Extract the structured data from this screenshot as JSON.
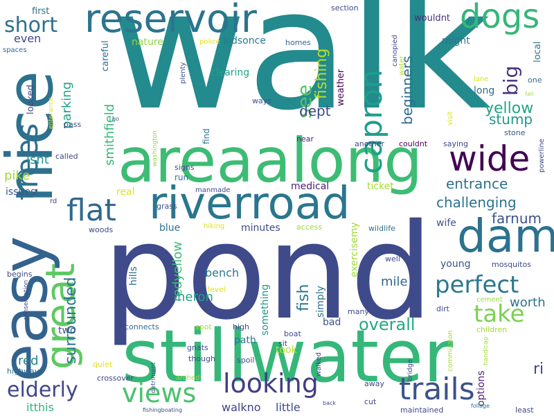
{
  "words": [
    {
      "text": "walk",
      "size": 240,
      "color": "#238a8d",
      "rot": 0
    },
    {
      "text": "pond",
      "size": 190,
      "color": "#3e4a89",
      "rot": 0
    },
    {
      "text": "stillwater",
      "size": 104,
      "color": "#35b779",
      "rot": 0
    },
    {
      "text": "areaalong",
      "size": 88,
      "color": "#3dbc74",
      "rot": 0
    },
    {
      "text": "nice",
      "size": 92,
      "color": "#2c718e",
      "rot": -90
    },
    {
      "text": "easy",
      "size": 90,
      "color": "#33638d",
      "rot": -90
    },
    {
      "text": "riverroad",
      "size": 64,
      "color": "#2a768e",
      "rot": 0
    },
    {
      "text": "dam",
      "size": 66,
      "color": "#2c728e",
      "rot": 0
    },
    {
      "text": "reservoir",
      "size": 56,
      "color": "#2b748e",
      "rot": 0
    },
    {
      "text": "great",
      "size": 58,
      "color": "#5ec962",
      "rot": -90
    },
    {
      "text": "wide",
      "size": 50,
      "color": "#440154",
      "rot": 0
    },
    {
      "text": "dogs",
      "size": 48,
      "color": "#35b779",
      "rot": 0
    },
    {
      "text": "trees",
      "size": 44,
      "color": "#2e6f8e",
      "rot": -90
    },
    {
      "text": "capron",
      "size": 44,
      "color": "#1f9e89",
      "rot": -90
    },
    {
      "text": "flat",
      "size": 44,
      "color": "#31688e",
      "rot": 0
    },
    {
      "text": "trails",
      "size": 44,
      "color": "#3b528b",
      "rot": 0
    },
    {
      "text": "looking",
      "size": 38,
      "color": "#433e85",
      "rot": 0
    },
    {
      "text": "perfect",
      "size": 34,
      "color": "#29788e",
      "rot": 0
    },
    {
      "text": "views",
      "size": 38,
      "color": "#4ac16d",
      "rot": 0
    },
    {
      "text": "take",
      "size": 34,
      "color": "#7ad151",
      "rot": 0
    },
    {
      "text": "elderly",
      "size": 30,
      "color": "#3f4788",
      "rot": 0
    },
    {
      "text": "short",
      "size": 30,
      "color": "#2d708e",
      "rot": 0
    },
    {
      "text": "big",
      "size": 28,
      "color": "#46337e",
      "rot": -90
    },
    {
      "text": "see",
      "size": 28,
      "color": "#52c569",
      "rot": -90
    },
    {
      "text": "surrounded",
      "size": 22,
      "color": "#2b748e",
      "rot": -90
    },
    {
      "text": "overall",
      "size": 24,
      "color": "#22a884",
      "rot": 0
    },
    {
      "text": "yellow",
      "size": 22,
      "color": "#21a685",
      "rot": 0
    },
    {
      "text": "challenging",
      "size": 20,
      "color": "#2c728e",
      "rot": 0
    },
    {
      "text": "entrance",
      "size": 20,
      "color": "#2d718e",
      "rot": 0
    },
    {
      "text": "stump",
      "size": 20,
      "color": "#1f988b",
      "rot": 0
    },
    {
      "text": "fishing",
      "size": 22,
      "color": "#b5de2b",
      "rot": -90
    },
    {
      "text": "fish",
      "size": 22,
      "color": "#2a788e",
      "rot": -90
    },
    {
      "text": "beginners",
      "size": 20,
      "color": "#2e6e8e",
      "rot": -90
    },
    {
      "text": "farnum",
      "size": 20,
      "color": "#3b528b",
      "rot": 0
    },
    {
      "text": "dept",
      "size": 20,
      "color": "#3e4989",
      "rot": 0
    },
    {
      "text": "parking",
      "size": 18,
      "color": "#20a386",
      "rot": -90
    },
    {
      "text": "smithfield",
      "size": 18,
      "color": "#35b779",
      "rot": -90
    },
    {
      "text": "redyellow",
      "size": 18,
      "color": "#3dbc74",
      "rot": -90
    },
    {
      "text": "red",
      "size": 18,
      "color": "#26828e",
      "rot": 0
    },
    {
      "text": "worth",
      "size": 18,
      "color": "#2c728e",
      "rot": 0
    },
    {
      "text": "mile",
      "size": 18,
      "color": "#31688e",
      "rot": 0
    },
    {
      "text": "pike",
      "size": 18,
      "color": "#a0da39",
      "rot": 0
    },
    {
      "text": "isnt",
      "size": 18,
      "color": "#218f8d",
      "rot": 0
    },
    {
      "text": "heron",
      "size": 18,
      "color": "#20a486",
      "rot": 0
    },
    {
      "text": "bench",
      "size": 16,
      "color": "#2a788e",
      "rot": 0
    },
    {
      "text": "itthis",
      "size": 16,
      "color": "#2fb47c",
      "rot": 0
    },
    {
      "text": "walkno",
      "size": 16,
      "color": "#414487",
      "rot": 0
    },
    {
      "text": "little",
      "size": 16,
      "color": "#3e4989",
      "rot": 0
    },
    {
      "text": "ri",
      "size": 22,
      "color": "#3e4989",
      "rot": 0
    },
    {
      "text": "even",
      "size": 16,
      "color": "#3e4989",
      "rot": 0
    },
    {
      "text": "exercisemy",
      "size": 14,
      "color": "#a0da39",
      "rot": -90
    },
    {
      "text": "medical",
      "size": 14,
      "color": "#482173",
      "rot": 0
    },
    {
      "text": "wife",
      "size": 14,
      "color": "#3b528b",
      "rot": 0
    },
    {
      "text": "young",
      "size": 14,
      "color": "#3b528b",
      "rot": 0
    },
    {
      "text": "long",
      "size": 14,
      "color": "#31688e",
      "rot": 0
    },
    {
      "text": "blue",
      "size": 14,
      "color": "#2c728e",
      "rot": 0
    },
    {
      "text": "minutes",
      "size": 14,
      "color": "#3e4989",
      "rot": 0
    },
    {
      "text": "clearing",
      "size": 14,
      "color": "#20a486",
      "rot": 0
    },
    {
      "text": "ticket",
      "size": 14,
      "color": "#a8db34",
      "rot": 0
    },
    {
      "text": "real",
      "size": 14,
      "color": "#dde318",
      "rot": 0
    },
    {
      "text": "might",
      "size": 14,
      "color": "#2c728e",
      "rot": 0
    },
    {
      "text": "nature",
      "size": 14,
      "color": "#8fd744",
      "rot": 0
    },
    {
      "text": "kidsonce",
      "size": 14,
      "color": "#2a788e",
      "rot": 0
    },
    {
      "text": "hills",
      "size": 14,
      "color": "#2e6e8e",
      "rot": -90
    },
    {
      "text": "something",
      "size": 14,
      "color": "#1f9a8a",
      "rot": -90
    },
    {
      "text": "simply",
      "size": 14,
      "color": "#2e6e8e",
      "rot": -90
    },
    {
      "text": "options",
      "size": 14,
      "color": "#482475",
      "rot": -90
    },
    {
      "text": "bad",
      "size": 14,
      "color": "#3b528b",
      "rot": 0
    },
    {
      "text": "took",
      "size": 14,
      "color": "#b5de2b",
      "rot": 0
    },
    {
      "text": "path",
      "size": 14,
      "color": "#2c728e",
      "rot": 0
    },
    {
      "text": "two",
      "size": 14,
      "color": "#3b528b",
      "rot": 0
    },
    {
      "text": "issues",
      "size": 14,
      "color": "#3b528b",
      "rot": 0
    },
    {
      "text": "run",
      "size": 12,
      "color": "#2e6e8e",
      "rot": 0
    },
    {
      "text": "looked",
      "size": 13,
      "color": "#3e4989",
      "rot": -90
    },
    {
      "text": "careful",
      "size": 13,
      "color": "#2e6e8e",
      "rot": -90
    },
    {
      "text": "weather",
      "size": 13,
      "color": "#440154",
      "rot": -90
    },
    {
      "text": "local",
      "size": 13,
      "color": "#2c728e",
      "rot": -90
    },
    {
      "text": "wouldnt",
      "size": 13,
      "color": "#472f7d",
      "rot": 0
    },
    {
      "text": "first",
      "size": 13,
      "color": "#2e6e8e",
      "rot": 0
    },
    {
      "text": "section",
      "size": 11,
      "color": "#3e4989",
      "rot": 0
    },
    {
      "text": "homes",
      "size": 11,
      "color": "#31688e",
      "rot": 0
    },
    {
      "text": "police",
      "size": 10,
      "color": "#dde318",
      "rot": 0
    },
    {
      "text": "spaces",
      "size": 10,
      "color": "#31688e",
      "rot": 0
    },
    {
      "text": "plenty",
      "size": 10,
      "color": "#3b528b",
      "rot": -90
    },
    {
      "text": "canopied",
      "size": 10,
      "color": "#3e4989",
      "rot": -90
    },
    {
      "text": "water",
      "size": 10,
      "color": "#b5de2b",
      "rot": -90
    },
    {
      "text": "ways",
      "size": 11,
      "color": "#3b528b",
      "rot": 0
    },
    {
      "text": "lane",
      "size": 10,
      "color": "#dde318",
      "rot": 0
    },
    {
      "text": "one",
      "size": 11,
      "color": "#31688e",
      "rot": 0
    },
    {
      "text": "fall",
      "size": 8,
      "color": "#a0da39",
      "rot": 0
    },
    {
      "text": "find",
      "size": 12,
      "color": "#2c728e",
      "rot": -90
    },
    {
      "text": "pass",
      "size": 11,
      "color": "#3e4989",
      "rot": 0
    },
    {
      "text": "go",
      "size": 8,
      "color": "#3b528b",
      "rot": 0
    },
    {
      "text": "enterance",
      "size": 9,
      "color": "#dde318",
      "rot": -90
    },
    {
      "text": "visit",
      "size": 10,
      "color": "#dde318",
      "rot": -90
    },
    {
      "text": "stone",
      "size": 11,
      "color": "#3b528b",
      "rot": 0
    },
    {
      "text": "powerline",
      "size": 10,
      "color": "#3e4989",
      "rot": -90
    },
    {
      "text": "saying",
      "size": 11,
      "color": "#3e4989",
      "rot": 0
    },
    {
      "text": "near",
      "size": 11,
      "color": "#482173",
      "rot": 0
    },
    {
      "text": "another",
      "size": 11,
      "color": "#3e4989",
      "rot": 0
    },
    {
      "text": "couldnt",
      "size": 11,
      "color": "#440154",
      "rot": 0
    },
    {
      "text": "called",
      "size": 11,
      "color": "#3e4989",
      "rot": 0
    },
    {
      "text": "washington",
      "size": 9,
      "color": "#8fd744",
      "rot": -90
    },
    {
      "text": "signs",
      "size": 11,
      "color": "#3e4989",
      "rot": 0
    },
    {
      "text": "rd",
      "size": 10,
      "color": "#3e4989",
      "rot": 0
    },
    {
      "text": "grass",
      "size": 11,
      "color": "#3b528b",
      "rot": 0
    },
    {
      "text": "manmade",
      "size": 10,
      "color": "#3e4989",
      "rot": 0
    },
    {
      "text": "woods",
      "size": 11,
      "color": "#3e4989",
      "rot": 0
    },
    {
      "text": "hiking",
      "size": 10,
      "color": "#dde318",
      "rot": 0
    },
    {
      "text": "access",
      "size": 11,
      "color": "#a0da39",
      "rot": 0
    },
    {
      "text": "wildlife",
      "size": 11,
      "color": "#2c728e",
      "rot": 0
    },
    {
      "text": "begins",
      "size": 11,
      "color": "#3e4989",
      "rot": 0
    },
    {
      "text": "conservation",
      "size": 9,
      "color": "#3e4989",
      "rot": -90
    },
    {
      "text": "level",
      "size": 11,
      "color": "#dde318",
      "rot": 0
    },
    {
      "text": "well",
      "size": 11,
      "color": "#3e4989",
      "rot": 0
    },
    {
      "text": "mosquitos",
      "size": 11,
      "color": "#3e4989",
      "rot": 0
    },
    {
      "text": "cement",
      "size": 10,
      "color": "#a0da39",
      "rot": 0
    },
    {
      "text": "many",
      "size": 11,
      "color": "#3e4989",
      "rot": 0
    },
    {
      "text": "dirt",
      "size": 11,
      "color": "#3e4989",
      "rot": 0
    },
    {
      "text": "children",
      "size": 11,
      "color": "#a0da39",
      "rot": 0
    },
    {
      "text": "connects",
      "size": 11,
      "color": "#31688e",
      "rot": 0
    },
    {
      "text": "spot",
      "size": 11,
      "color": "#a0da39",
      "rot": 0
    },
    {
      "text": "high",
      "size": 11,
      "color": "#3e4989",
      "rot": 0
    },
    {
      "text": "boat",
      "size": 11,
      "color": "#3e4989",
      "rot": 0
    },
    {
      "text": "sit",
      "size": 11,
      "color": "#3e4989",
      "rot": 0
    },
    {
      "text": "gnats",
      "size": 11,
      "color": "#3e4989",
      "rot": 0
    },
    {
      "text": "though",
      "size": 11,
      "color": "#3e4989",
      "rot": 0
    },
    {
      "text": "spoil",
      "size": 11,
      "color": "#3e4989",
      "rot": 0
    },
    {
      "text": "walked",
      "size": 10,
      "color": "#3e4989",
      "rot": -90
    },
    {
      "text": "commission",
      "size": 10,
      "color": "#a0da39",
      "rot": -90
    },
    {
      "text": "handicap",
      "size": 9,
      "color": "#a0da39",
      "rot": -90
    },
    {
      "text": "highway",
      "size": 11,
      "color": "#2c728e",
      "rot": 0
    },
    {
      "text": "quiet",
      "size": 11,
      "color": "#dde318",
      "rot": 0
    },
    {
      "text": "crossover",
      "size": 11,
      "color": "#3e4989",
      "rot": 0
    },
    {
      "text": "arched",
      "size": 10,
      "color": "#a0da39",
      "rot": 0
    },
    {
      "text": "detriment",
      "size": 9,
      "color": "#3e4989",
      "rot": -90
    },
    {
      "text": "bridge",
      "size": 10,
      "color": "#3e4989",
      "rot": -90
    },
    {
      "text": "away",
      "size": 11,
      "color": "#3e4989",
      "rot": 0
    },
    {
      "text": "cut",
      "size": 11,
      "color": "#3e4989",
      "rot": 0
    },
    {
      "text": "back",
      "size": 8,
      "color": "#3e4989",
      "rot": 0
    },
    {
      "text": "foliage",
      "size": 8,
      "color": "#2c728e",
      "rot": 0
    },
    {
      "text": "least",
      "size": 11,
      "color": "#3e4989",
      "rot": 0
    },
    {
      "text": "fishingboating",
      "size": 8,
      "color": "#3e4989",
      "rot": 0
    },
    {
      "text": "maintained",
      "size": 11,
      "color": "#3e4989",
      "rot": 0
    }
  ]
}
